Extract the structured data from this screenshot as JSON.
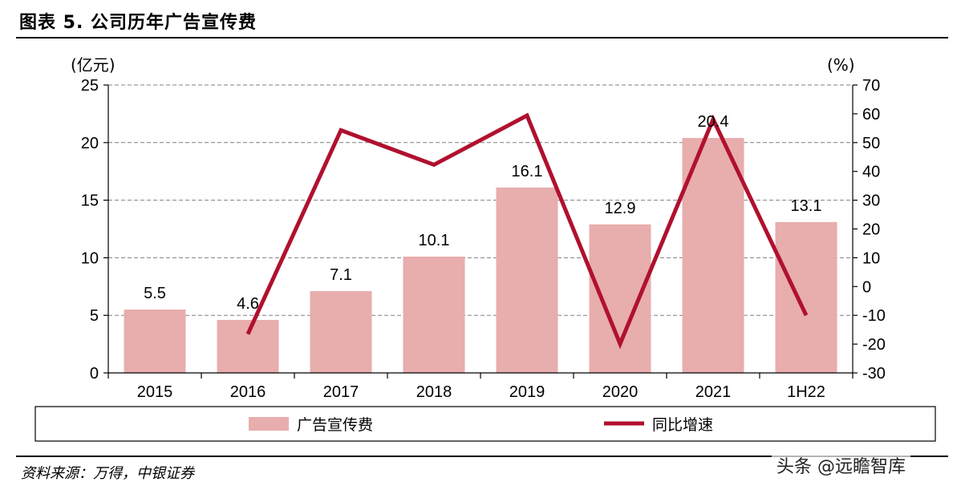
{
  "figure": {
    "title": "图表 5. 公司历年广告宣传费",
    "source": "资料来源：万得，中银证券",
    "watermark": "头条 @远瞻智库"
  },
  "colors": {
    "bar": "#E8ADAD",
    "line": "#B0112E",
    "grid": "#808080"
  },
  "chart_data": {
    "type": "bar+line",
    "categories": [
      "2015",
      "2016",
      "2017",
      "2018",
      "2019",
      "2020",
      "2021",
      "1H22"
    ],
    "left_axis": {
      "unit": "(亿元)",
      "ylim": [
        0,
        25
      ],
      "ticks": [
        "0",
        "5",
        "10",
        "15",
        "20",
        "25"
      ]
    },
    "right_axis": {
      "unit": "(%)",
      "ylim": [
        -30,
        70
      ],
      "ticks": [
        "-30",
        "-20",
        "-10",
        "0",
        "10",
        "20",
        "30",
        "40",
        "50",
        "60",
        "70"
      ]
    },
    "grid": true,
    "legend_placement": "bottom",
    "series": [
      {
        "name": "广告宣传费",
        "type": "bar",
        "axis": "left",
        "values": [
          5.5,
          4.6,
          7.1,
          10.1,
          16.1,
          12.9,
          20.4,
          13.1
        ],
        "labels": [
          "5.5",
          "4.6",
          "7.1",
          "10.1",
          "16.1",
          "12.9",
          "20.4",
          "13.1"
        ]
      },
      {
        "name": "同比增速",
        "type": "line",
        "axis": "right",
        "values": [
          null,
          -16.5,
          54.3,
          42.3,
          59.4,
          -19.9,
          58.1,
          -10.0
        ]
      }
    ]
  }
}
